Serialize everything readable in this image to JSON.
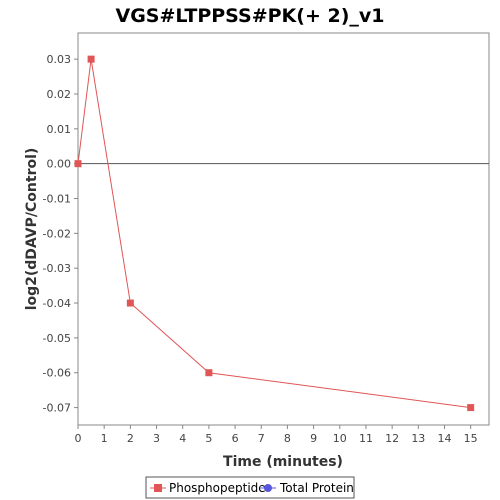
{
  "chart_data": {
    "type": "line",
    "title": "VGS#LTPPSS#PK(+ 2)_v1",
    "xlabel": "Time (minutes)",
    "ylabel": "log2(dDAVP/Control)",
    "xlim": [
      0,
      15.7
    ],
    "ylim": [
      -0.075,
      0.0375
    ],
    "x_ticks": [
      0,
      1,
      2,
      3,
      4,
      5,
      6,
      7,
      8,
      9,
      10,
      11,
      12,
      13,
      14,
      15
    ],
    "y_ticks": [
      0.03,
      0.02,
      0.01,
      0.0,
      -0.01,
      -0.02,
      -0.03,
      -0.04,
      -0.05,
      -0.06,
      -0.07
    ],
    "y_tick_labels": [
      "0.03",
      "0.02",
      "0.01",
      "0.00",
      "-0.01",
      "-0.02",
      "-0.03",
      "-0.04",
      "-0.05",
      "-0.06",
      "-0.07"
    ],
    "zero_line": true,
    "grid": false,
    "legend_position": "bottom-center",
    "series": [
      {
        "name": "Phosphopeptide",
        "color": "#e05555",
        "marker": "square",
        "x": [
          0,
          0.5,
          2,
          5,
          15
        ],
        "y": [
          0.0,
          0.03,
          -0.04,
          -0.06,
          -0.07
        ]
      },
      {
        "name": "Total Protein",
        "color": "#5555e0",
        "marker": "circle",
        "x": [],
        "y": []
      }
    ]
  }
}
